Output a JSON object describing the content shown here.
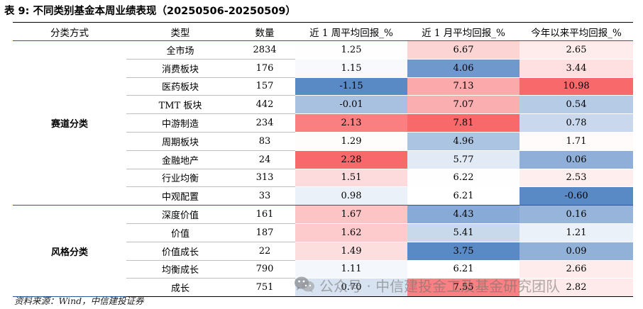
{
  "title": "表 9: 不同类别基金本周业绩表现（20250506-20250509）",
  "headers": [
    "分类方式",
    "类型",
    "数量",
    "近 1 周平均回报_%",
    "近 1 月平均回报_%",
    "今年以来平均回报_%"
  ],
  "groups": [
    {
      "name": "赛道分类",
      "rows": [
        {
          "type": "全市场",
          "count": "2834",
          "week": "1.25",
          "month": "6.67",
          "ytd": "2.65"
        },
        {
          "type": "消费板块",
          "count": "176",
          "week": "1.15",
          "month": "4.06",
          "ytd": "3.44"
        },
        {
          "type": "医药板块",
          "count": "157",
          "week": "-1.15",
          "month": "7.13",
          "ytd": "10.98"
        },
        {
          "type": "TMT 板块",
          "count": "442",
          "week": "-0.01",
          "month": "7.07",
          "ytd": "0.54"
        },
        {
          "type": "中游制造",
          "count": "234",
          "week": "2.13",
          "month": "7.81",
          "ytd": "0.78"
        },
        {
          "type": "周期板块",
          "count": "83",
          "week": "1.29",
          "month": "4.96",
          "ytd": "1.71"
        },
        {
          "type": "金融地产",
          "count": "24",
          "week": "2.28",
          "month": "5.77",
          "ytd": "0.06"
        },
        {
          "type": "行业均衡",
          "count": "313",
          "week": "1.51",
          "month": "6.22",
          "ytd": "2.53"
        },
        {
          "type": "中观配置",
          "count": "33",
          "week": "0.98",
          "month": "6.21",
          "ytd": "-0.60"
        }
      ]
    },
    {
      "name": "风格分类",
      "rows": [
        {
          "type": "深度价值",
          "count": "161",
          "week": "1.67",
          "month": "4.43",
          "ytd": "0.16"
        },
        {
          "type": "价值",
          "count": "187",
          "week": "1.62",
          "month": "5.41",
          "ytd": "1.21"
        },
        {
          "type": "价值成长",
          "count": "22",
          "week": "1.49",
          "month": "3.75",
          "ytd": "0.09"
        },
        {
          "type": "均衡成长",
          "count": "790",
          "week": "1.11",
          "month": "6.21",
          "ytd": "2.66"
        },
        {
          "type": "成长",
          "count": "751",
          "week": "0.70",
          "month": "7.55",
          "ytd": "2.82"
        }
      ]
    }
  ],
  "heat_colors": {
    "high": "#f8696b",
    "mid": "#ffffff",
    "low": "#5a8ac6"
  },
  "source": "资料来源：Wind，中信建投证券",
  "watermark": "公众号 · 中信建投金工及基金研究团队",
  "watermark_icon": "wechat-icon"
}
